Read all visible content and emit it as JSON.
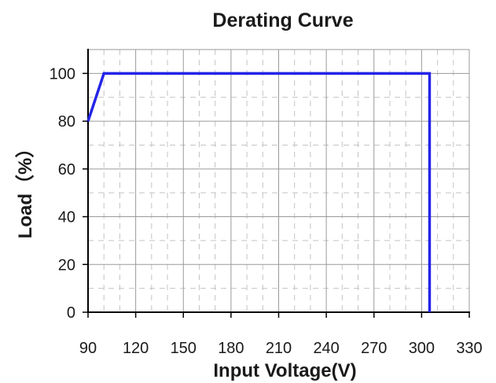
{
  "chart_data": {
    "type": "line",
    "title": "Derating Curve",
    "xlabel": "Input Voltage(V)",
    "ylabel": "Load（%）",
    "xlim": [
      90,
      330
    ],
    "ylim": [
      0,
      110
    ],
    "x_ticks": [
      90,
      120,
      150,
      180,
      210,
      240,
      270,
      300,
      330
    ],
    "y_ticks": [
      0,
      20,
      40,
      60,
      80,
      100
    ],
    "x_minor_step": 10,
    "y_minor_step": 10,
    "grid": true,
    "series": [
      {
        "color": "#2424e8",
        "points": [
          [
            90,
            80
          ],
          [
            100,
            100
          ],
          [
            305,
            100
          ],
          [
            305,
            0
          ]
        ]
      }
    ],
    "colors": {
      "line": "#2424e8",
      "grid_major": "#9a9a9a",
      "grid_minor": "#c4c4c4",
      "axis": "#000000"
    }
  }
}
